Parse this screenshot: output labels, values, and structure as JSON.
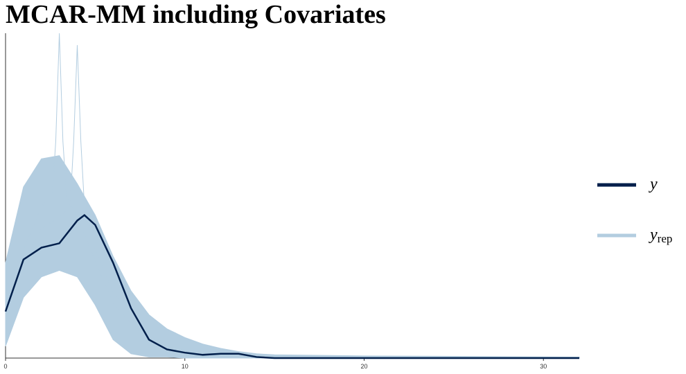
{
  "chart_data": {
    "type": "density-overlay",
    "title": "MCAR-MM including Covariates",
    "xlim": [
      0,
      32
    ],
    "ylim": [
      0,
      0.3
    ],
    "xticks": [
      0,
      10,
      20,
      30
    ],
    "series": [
      {
        "name": "y",
        "color": "#011f4b",
        "x": [
          0,
          1,
          2,
          3,
          4,
          4.4,
          5,
          6,
          7,
          8,
          9,
          10,
          11,
          12,
          13,
          14,
          15,
          20,
          32
        ],
        "values": [
          0.043,
          0.091,
          0.102,
          0.106,
          0.127,
          0.132,
          0.123,
          0.088,
          0.046,
          0.017,
          0.008,
          0.005,
          0.003,
          0.004,
          0.004,
          0.001,
          0,
          0,
          0
        ]
      },
      {
        "name": "y",
        "subscript": "rep",
        "color": "#b3cde0",
        "x": [
          0,
          1,
          2,
          3,
          4,
          5,
          6,
          7,
          8,
          9,
          10,
          11,
          12,
          13,
          14,
          15,
          20,
          32
        ],
        "lower": [
          0.011,
          0.056,
          0.075,
          0.081,
          0.075,
          0.049,
          0.017,
          0.004,
          0.001,
          0.001,
          0,
          0,
          0,
          0,
          0,
          0,
          0,
          0
        ],
        "upper": [
          0.088,
          0.158,
          0.184,
          0.187,
          0.161,
          0.132,
          0.094,
          0.062,
          0.04,
          0.027,
          0.019,
          0.013,
          0.009,
          0.006,
          0.004,
          0.003,
          0.002,
          0.001
        ],
        "draws": [
          {
            "x": [
              0,
              1,
              2,
              2.6,
              2.8,
              3,
              3.2,
              3.4,
              4,
              5,
              6,
              8,
              10,
              15
            ],
            "values": [
              0.05,
              0.1,
              0.14,
              0.15,
              0.2,
              0.3,
              0.2,
              0.15,
              0.13,
              0.09,
              0.05,
              0.015,
              0.005,
              0
            ]
          },
          {
            "x": [
              0,
              1,
              2,
              3,
              3.6,
              3.8,
              4,
              4.2,
              4.4,
              5,
              6,
              8,
              10,
              15
            ],
            "values": [
              0.04,
              0.09,
              0.12,
              0.13,
              0.14,
              0.2,
              0.289,
              0.2,
              0.14,
              0.1,
              0.06,
              0.02,
              0.006,
              0
            ]
          }
        ]
      }
    ]
  }
}
